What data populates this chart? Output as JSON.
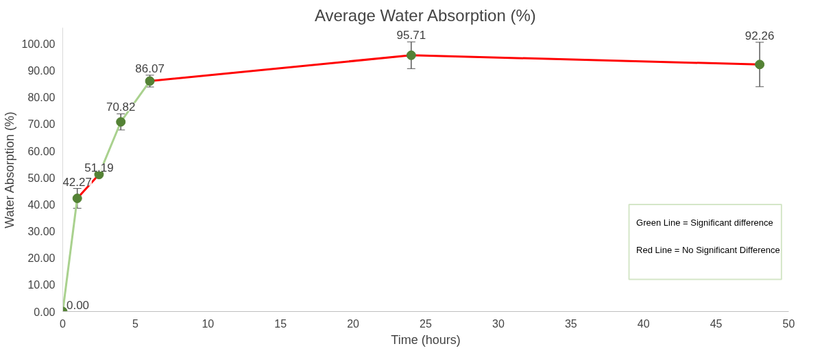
{
  "chart_data": {
    "type": "line",
    "title": "Average Water Absorption (%)",
    "xlabel": "Time (hours)",
    "ylabel": "Water Absorption (%)",
    "xlim": [
      0,
      50
    ],
    "xticks": [
      0,
      5,
      10,
      15,
      20,
      25,
      30,
      35,
      40,
      45,
      50
    ],
    "ylim": [
      0,
      106
    ],
    "yticks": [
      {
        "value": 0,
        "label": "0.00"
      },
      {
        "value": 10,
        "label": "10.00"
      },
      {
        "value": 20,
        "label": "20.00"
      },
      {
        "value": 30,
        "label": "30.00"
      },
      {
        "value": 40,
        "label": "40.00"
      },
      {
        "value": 50,
        "label": "50.00"
      },
      {
        "value": 60,
        "label": "60.00"
      },
      {
        "value": 70,
        "label": "70.00"
      },
      {
        "value": 80,
        "label": "80.00"
      },
      {
        "value": 90,
        "label": "90.00"
      },
      {
        "value": 100,
        "label": "100.00"
      }
    ],
    "grid": false,
    "series": [
      {
        "color": "#a9d18e",
        "x": [
          0,
          1
        ],
        "values": [
          0,
          42.27
        ]
      },
      {
        "color": "#ff0000",
        "x": [
          1,
          2.5
        ],
        "values": [
          42.27,
          51.19
        ]
      },
      {
        "color": "#a9d18e",
        "x": [
          2.5,
          4,
          6
        ],
        "values": [
          51.19,
          70.82,
          86.07
        ]
      },
      {
        "color": "#ff0000",
        "x": [
          6,
          24,
          48
        ],
        "values": [
          86.07,
          95.71,
          92.26
        ]
      },
      {
        "type": "scatter",
        "marker": "circle",
        "color": "#548235",
        "x": [
          0,
          1,
          2.5,
          4,
          6,
          24,
          48
        ],
        "values": [
          0,
          42.27,
          51.19,
          70.82,
          86.07,
          95.71,
          92.26
        ],
        "errors": [
          null,
          3.7,
          null,
          3.0,
          2.2,
          5.0,
          8.3
        ],
        "value_labels": [
          "0.00",
          "42.27",
          "51.19",
          "70.82",
          "86.07",
          "95.71",
          "92.26"
        ]
      }
    ],
    "annotations": [
      "Green Line = Significant difference",
      "Red Line = No Significant Difference"
    ]
  }
}
